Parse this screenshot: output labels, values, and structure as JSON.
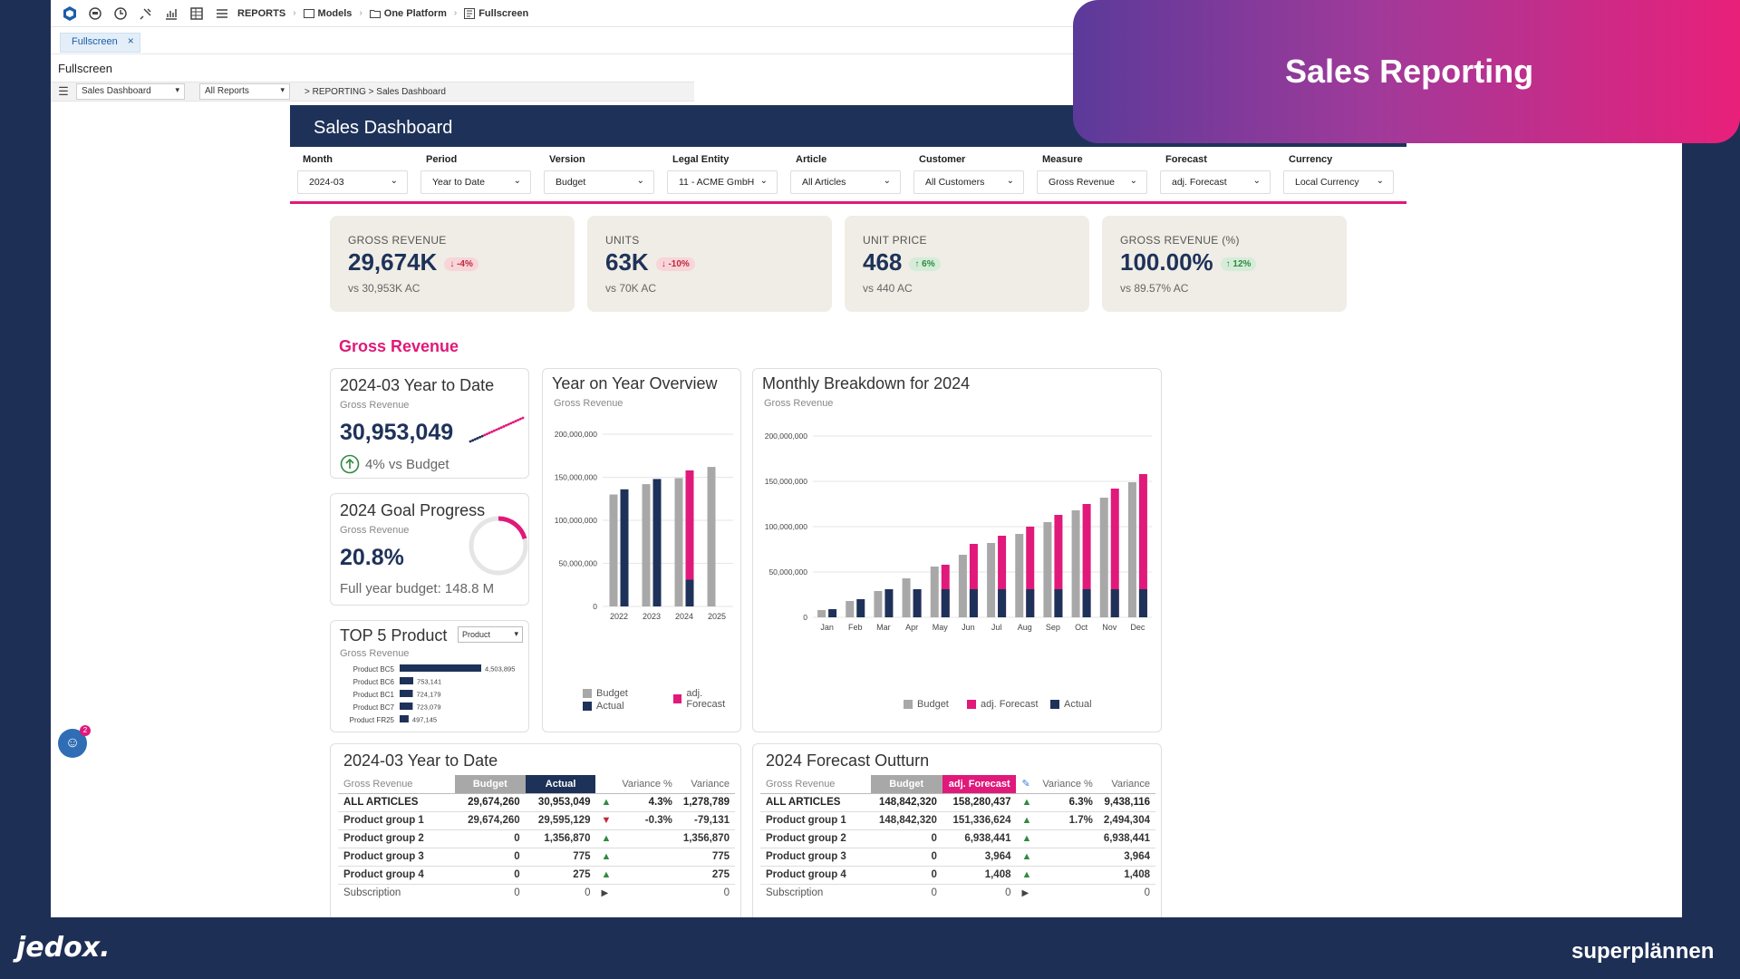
{
  "toolbar": {
    "reports_label": "REPORTS",
    "crumbs": [
      "Models",
      "One Platform",
      "Fullscreen"
    ]
  },
  "tab": {
    "label": "Fullscreen"
  },
  "page_label": "Fullscreen",
  "subbar": {
    "report_select": "Sales Dashboard",
    "filter_select": "All Reports",
    "path": "> REPORTING > Sales Dashboard"
  },
  "dashboard": {
    "title": "Sales Dashboard",
    "filters": [
      {
        "label": "Month",
        "value": "2024-03"
      },
      {
        "label": "Period",
        "value": "Year to Date"
      },
      {
        "label": "Version",
        "value": "Budget"
      },
      {
        "label": "Legal Entity",
        "value": "11 - ACME GmbH"
      },
      {
        "label": "Article",
        "value": "All Articles"
      },
      {
        "label": "Customer",
        "value": "All Customers"
      },
      {
        "label": "Measure",
        "value": "Gross Revenue"
      },
      {
        "label": "Forecast",
        "value": "adj. Forecast"
      },
      {
        "label": "Currency",
        "value": "Local Currency"
      }
    ],
    "kpis": [
      {
        "title": "GROSS REVENUE",
        "value": "29,674K",
        "delta": "↓ -4%",
        "dir": "down",
        "sub": "vs 30,953K AC"
      },
      {
        "title": "UNITS",
        "value": "63K",
        "delta": "↓ -10%",
        "dir": "down",
        "sub": "vs 70K AC"
      },
      {
        "title": "UNIT PRICE",
        "value": "468",
        "delta": "↑ 6%",
        "dir": "up",
        "sub": "vs 440 AC"
      },
      {
        "title": "GROSS REVENUE (%)",
        "value": "100.00%",
        "delta": "↑ 12%",
        "dir": "up",
        "sub": "vs 89.57% AC"
      }
    ],
    "section_title": "Gross Revenue",
    "ytd_card": {
      "title": "2024-03 Year to Date",
      "sub": "Gross Revenue",
      "value": "30,953,049",
      "vs": "4% vs Budget"
    },
    "goal_card": {
      "title": "2024 Goal Progress",
      "sub": "Gross Revenue",
      "value": "20.8%",
      "budget": "Full year budget: 148.8 M"
    },
    "top5_card": {
      "title": "TOP 5 Product",
      "sub": "Gross Revenue",
      "dropdown": "Product"
    },
    "yoy_card": {
      "title": "Year on Year Overview",
      "sub": "Gross Revenue",
      "legend": [
        "Budget",
        "adj. Forecast",
        "Actual"
      ]
    },
    "monthly_card": {
      "title": "Monthly Breakdown for 2024",
      "sub": "Gross Revenue",
      "legend": [
        "Budget",
        "adj. Forecast",
        "Actual"
      ]
    },
    "ytd_table": {
      "title": "2024-03 Year to Date",
      "measure": "Gross Revenue",
      "headers": [
        "Budget",
        "Actual",
        "Variance %",
        "Variance"
      ],
      "rows": [
        {
          "name": "ALL ARTICLES",
          "b": "29,674,260",
          "a": "30,953,049",
          "t": "up",
          "vp": "4.3%",
          "v": "1,278,789"
        },
        {
          "name": "Product group 1",
          "b": "29,674,260",
          "a": "29,595,129",
          "t": "down",
          "vp": "-0.3%",
          "v": "-79,131"
        },
        {
          "name": "Product group 2",
          "b": "0",
          "a": "1,356,870",
          "t": "up",
          "vp": "",
          "v": "1,356,870"
        },
        {
          "name": "Product group 3",
          "b": "0",
          "a": "775",
          "t": "up",
          "vp": "",
          "v": "775"
        },
        {
          "name": "Product group 4",
          "b": "0",
          "a": "275",
          "t": "up",
          "vp": "",
          "v": "275"
        },
        {
          "name": "Subscription",
          "b": "0",
          "a": "0",
          "t": "right",
          "vp": "",
          "v": "0"
        }
      ]
    },
    "fc_table": {
      "title": "2024 Forecast Outturn",
      "measure": "Gross Revenue",
      "headers": [
        "Budget",
        "adj. Forecast",
        "Variance %",
        "Variance"
      ],
      "rows": [
        {
          "name": "ALL ARTICLES",
          "b": "148,842,320",
          "a": "158,280,437",
          "t": "up",
          "vp": "6.3%",
          "v": "9,438,116"
        },
        {
          "name": "Product group 1",
          "b": "148,842,320",
          "a": "151,336,624",
          "t": "up",
          "vp": "1.7%",
          "v": "2,494,304"
        },
        {
          "name": "Product group 2",
          "b": "0",
          "a": "6,938,441",
          "t": "up",
          "vp": "",
          "v": "6,938,441"
        },
        {
          "name": "Product group 3",
          "b": "0",
          "a": "3,964",
          "t": "up",
          "vp": "",
          "v": "3,964"
        },
        {
          "name": "Product group 4",
          "b": "0",
          "a": "1,408",
          "t": "up",
          "vp": "",
          "v": "1,408"
        },
        {
          "name": "Subscription",
          "b": "0",
          "a": "0",
          "t": "right",
          "vp": "",
          "v": "0"
        }
      ]
    }
  },
  "banner": {
    "title": "Sales Reporting"
  },
  "brands": {
    "left": "jedox.",
    "right": "superplännen"
  },
  "colors": {
    "navy": "#1e3259",
    "pink": "#e0197a",
    "grey": "#a8a8a8"
  },
  "chart_data": [
    {
      "type": "line",
      "title": "2024-03 Year to Date",
      "values": [
        2,
        3,
        4,
        5,
        6,
        7,
        8,
        9,
        10,
        11,
        12,
        13,
        14,
        15,
        16,
        17,
        18,
        19,
        20,
        21,
        22,
        23,
        24
      ],
      "actual_points": 6
    },
    {
      "type": "pie",
      "title": "2024 Goal Progress",
      "values": [
        20.8,
        79.2
      ]
    },
    {
      "type": "bar",
      "title": "TOP 5 Product",
      "categories": [
        "Product BC5",
        "Product BC6",
        "Product BC1",
        "Product BC7",
        "Product FR25"
      ],
      "values": [
        4503895,
        753141,
        724179,
        723079,
        497145
      ],
      "value_labels": [
        "4,503,895",
        "753,141",
        "724,179",
        "723,079",
        "497,145"
      ]
    },
    {
      "type": "bar",
      "title": "Year on Year Overview",
      "categories": [
        "2022",
        "2023",
        "2024",
        "2025"
      ],
      "ylim": [
        0,
        200000000
      ],
      "yticks": [
        "0",
        "50,000,000",
        "100,000,000",
        "150,000,000",
        "200,000,000"
      ],
      "series": [
        {
          "name": "Budget",
          "values": [
            130000000,
            142000000,
            149000000,
            162000000
          ]
        },
        {
          "name": "adj. Forecast",
          "values": [
            0,
            0,
            158000000,
            0
          ]
        },
        {
          "name": "Actual",
          "values": [
            136000000,
            148000000,
            31000000,
            0
          ]
        }
      ]
    },
    {
      "type": "bar",
      "title": "Monthly Breakdown for 2024",
      "categories": [
        "Jan",
        "Feb",
        "Mar",
        "Apr",
        "May",
        "Jun",
        "Jul",
        "Aug",
        "Sep",
        "Oct",
        "Nov",
        "Dec"
      ],
      "ylim": [
        0,
        200000000
      ],
      "yticks": [
        "0",
        "50,000,000",
        "100,000,000",
        "150,000,000",
        "200,000,000"
      ],
      "series": [
        {
          "name": "Budget",
          "values": [
            8000000,
            18000000,
            29000000,
            43000000,
            56000000,
            69000000,
            82000000,
            92000000,
            105000000,
            118000000,
            132000000,
            149000000
          ]
        },
        {
          "name": "adj. Forecast",
          "values": [
            0,
            0,
            0,
            30000000,
            58000000,
            81000000,
            90000000,
            100000000,
            113000000,
            125000000,
            142000000,
            158000000
          ]
        },
        {
          "name": "Actual",
          "values": [
            9000000,
            20000000,
            31000000,
            31000000,
            31000000,
            31000000,
            31000000,
            31000000,
            31000000,
            31000000,
            31000000,
            31000000
          ]
        }
      ]
    }
  ]
}
